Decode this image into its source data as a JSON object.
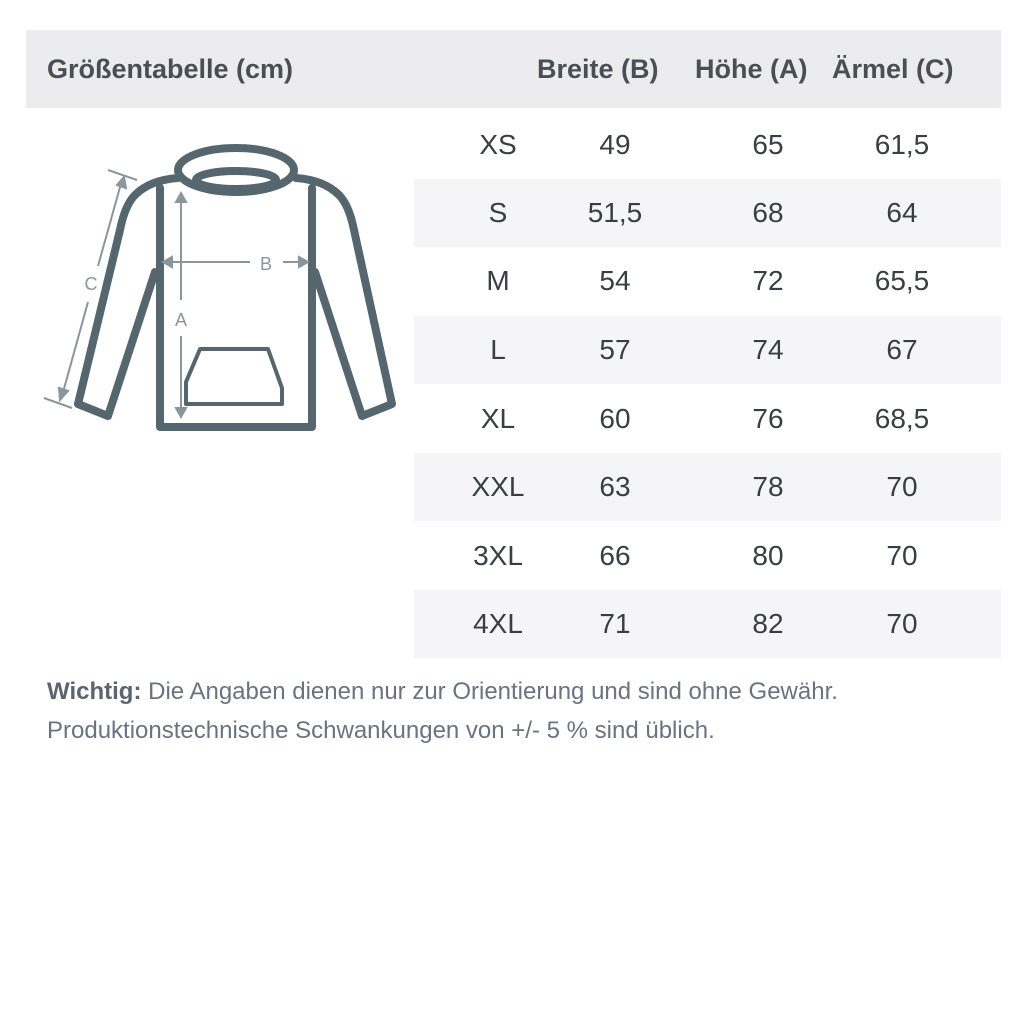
{
  "header": {
    "title": "Größentabelle (cm)",
    "col_width": "Breite (B)",
    "col_height": "Höhe (A)",
    "col_sleeve": "Ärmel (C)"
  },
  "diagram": {
    "label_a": "A",
    "label_b": "B",
    "label_c": "C"
  },
  "rows": [
    {
      "size": "XS",
      "width": "49",
      "height": "65",
      "sleeve": "61,5"
    },
    {
      "size": "S",
      "width": "51,5",
      "height": "68",
      "sleeve": "64"
    },
    {
      "size": "M",
      "width": "54",
      "height": "72",
      "sleeve": "65,5"
    },
    {
      "size": "L",
      "width": "57",
      "height": "74",
      "sleeve": "67"
    },
    {
      "size": "XL",
      "width": "60",
      "height": "76",
      "sleeve": "68,5"
    },
    {
      "size": "XXL",
      "width": "63",
      "height": "78",
      "sleeve": "70"
    },
    {
      "size": "3XL",
      "width": "66",
      "height": "80",
      "sleeve": "70"
    },
    {
      "size": "4XL",
      "width": "71",
      "height": "82",
      "sleeve": "70"
    }
  ],
  "note": {
    "bold": "Wichtig:",
    "line1": "Die Angaben dienen nur zur Orientierung und sind ohne Gewähr.",
    "line2": "Produktionstechnische Schwankungen von +/- 5 % sind üblich."
  },
  "colors": {
    "outline": "#56666e",
    "measure": "#8a969c",
    "header_bg": "#ececef",
    "stripe": "#f5f5f7"
  }
}
